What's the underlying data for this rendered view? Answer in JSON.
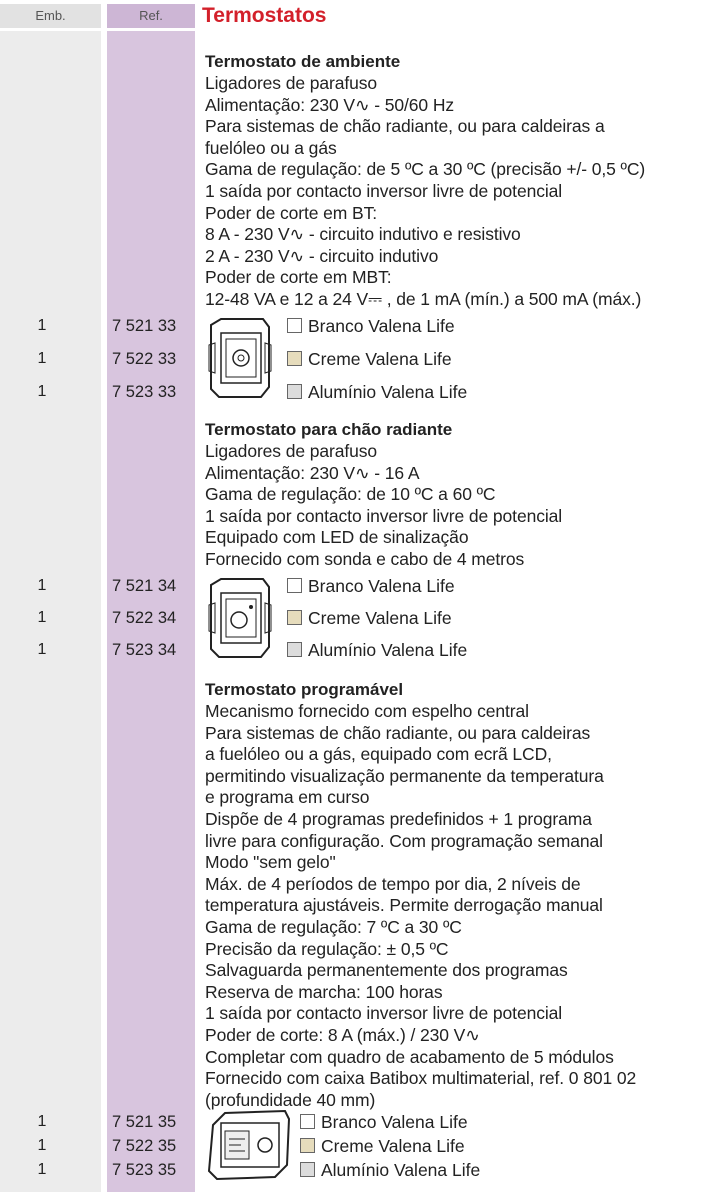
{
  "header": {
    "emb": "Emb.",
    "ref": "Ref.",
    "title": "Termostatos"
  },
  "sections": [
    {
      "title": "Termostato de ambiente",
      "lines": [
        "Ligadores de parafuso",
        "Alimentação: 230 V∿ - 50/60 Hz",
        "Para sistemas de chão radiante, ou para caldeiras a",
        "fuelóleo ou a gás",
        "Gama de regulação: de 5 ºC a 30 ºC (precisão +/- 0,5 ºC)",
        "1 saída por contacto inversor livre de potencial",
        "Poder de corte em BT:",
        "8 A - 230 V∿ - circuito indutivo e resistivo",
        "2 A - 230 V∿ - circuito indutivo",
        "Poder de corte em MBT:",
        "12-48 VA e 12 a 24 V⎓ , de 1 mA (mín.) a 500 mA (máx.)"
      ],
      "items": [
        {
          "emb": "1",
          "ref": "7 521 33",
          "label": "Branco Valena Life",
          "swatch": "#ffffff"
        },
        {
          "emb": "1",
          "ref": "7 522 33",
          "label": "Creme Valena Life",
          "swatch": "#e6dcbc"
        },
        {
          "emb": "1",
          "ref": "7 523 33",
          "label": "Alumínio Valena Life",
          "swatch": "#dcdcdc"
        }
      ]
    },
    {
      "title": "Termostato para chão radiante",
      "lines": [
        "Ligadores de parafuso",
        "Alimentação: 230 V∿ - 16 A",
        "Gama de regulação: de 10 ºC a 60 ºC",
        "1 saída por contacto inversor livre de potencial",
        "Equipado com LED de sinalização",
        "Fornecido com sonda e cabo de 4 metros"
      ],
      "items": [
        {
          "emb": "1",
          "ref": "7 521 34",
          "label": "Branco Valena Life",
          "swatch": "#ffffff"
        },
        {
          "emb": "1",
          "ref": "7 522 34",
          "label": "Creme Valena Life",
          "swatch": "#e6dcbc"
        },
        {
          "emb": "1",
          "ref": "7 523 34",
          "label": "Alumínio Valena Life",
          "swatch": "#dcdcdc"
        }
      ]
    },
    {
      "title": "Termostato programável",
      "lines": [
        "Mecanismo fornecido com espelho central",
        "Para sistemas de chão radiante, ou para caldeiras",
        "a fuelóleo ou a gás, equipado com ecrã LCD,",
        "permitindo visualização permanente da temperatura",
        "e programa em curso",
        "Dispõe de 4 programas predefinidos + 1 programa",
        "livre para configuração. Com programação semanal",
        "Modo \"sem gelo\"",
        "Máx. de 4 períodos de tempo por dia, 2 níveis de",
        "temperatura ajustáveis. Permite derrogação manual",
        "Gama de regulação: 7 ºC a 30 ºC",
        "Precisão da regulação: ± 0,5 ºC",
        "Salvaguarda permanentemente dos programas",
        "Reserva de marcha: 100 horas",
        "1 saída por contacto inversor livre de potencial",
        "Poder de corte: 8 A (máx.) / 230 V∿",
        "Completar com quadro de acabamento de 5 módulos",
        "Fornecido com caixa Batibox multimaterial, ref. 0 801 02",
        "(profundidade 40 mm)"
      ],
      "items": [
        {
          "emb": "1",
          "ref": "7 521 35",
          "label": "Branco Valena Life",
          "swatch": "#ffffff"
        },
        {
          "emb": "1",
          "ref": "7 522 35",
          "label": "Creme Valena Life",
          "swatch": "#e6dcbc"
        },
        {
          "emb": "1",
          "ref": "7 523 35",
          "label": "Alumínio Valena Life",
          "swatch": "#dcdcdc"
        }
      ]
    }
  ]
}
